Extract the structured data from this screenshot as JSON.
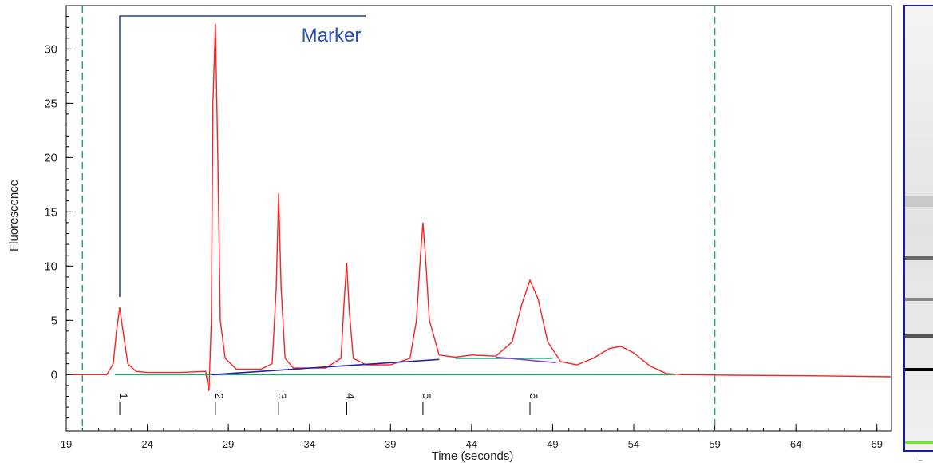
{
  "chart_data": {
    "type": "line",
    "x_label": "Time (seconds)",
    "y_label": "Fluorescence",
    "annotation": "Marker",
    "xlim": [
      19,
      69.9
    ],
    "ylim": [
      -5.2,
      34
    ],
    "xticks": [
      19,
      24,
      29,
      34,
      39,
      44,
      49,
      54,
      59,
      64,
      69
    ],
    "yticks": [
      0,
      5,
      10,
      15,
      20,
      25,
      30
    ],
    "minor_tick_step": 1,
    "window_lines": [
      20,
      59
    ],
    "window_color": "#2e9e74",
    "peaks": {
      "x": [
        22.3,
        28.2,
        32.1,
        36.3,
        41.0,
        47.6
      ],
      "labels": [
        "1",
        "2",
        "3",
        "4",
        "5",
        "6"
      ]
    },
    "series": [
      {
        "color": "#ff2020",
        "x": [
          19.4,
          21.5,
          21.9,
          22.1,
          22.3,
          22.5,
          22.8,
          23.3,
          24,
          26,
          27.6,
          27.8,
          27.95,
          28.05,
          28.2,
          28.35,
          28.5,
          28.8,
          29.5,
          31,
          31.7,
          31.95,
          32.1,
          32.25,
          32.5,
          33,
          35,
          35.95,
          36.15,
          36.3,
          36.45,
          36.7,
          37.5,
          39,
          40.2,
          40.6,
          40.85,
          41.0,
          41.15,
          41.4,
          42,
          43,
          44,
          45.5,
          46.5,
          47.1,
          47.6,
          48.1,
          48.7,
          49.5,
          50.5,
          51.5,
          52.5,
          53.2,
          54,
          55,
          56,
          57,
          60,
          65,
          69.9
        ],
        "values": [
          0,
          0,
          1,
          4,
          6.2,
          4,
          1,
          0.3,
          0.2,
          0.2,
          0.3,
          -1.5,
          5,
          25,
          32.3,
          20,
          5,
          1.5,
          0.5,
          0.5,
          1,
          8,
          16.7,
          8,
          1.5,
          0.6,
          0.6,
          1.5,
          7,
          10.3,
          6,
          1.5,
          0.9,
          0.9,
          1.5,
          5,
          11,
          14,
          11,
          5,
          1.8,
          1.6,
          1.8,
          1.7,
          3,
          6.5,
          8.7,
          7,
          3,
          1.2,
          0.9,
          1.5,
          2.4,
          2.6,
          2,
          0.8,
          0.1,
          0,
          -0.05,
          -0.1,
          -0.2
        ]
      },
      {
        "color": "#2e9e74",
        "x": [
          22,
          56.6
        ],
        "values": [
          0,
          0
        ]
      },
      {
        "color": "#2e9e74",
        "x": [
          43,
          49
        ],
        "values": [
          1.5,
          1.5
        ]
      },
      {
        "color": "#2323aa",
        "x": [
          28,
          42
        ],
        "values": [
          0,
          1.4
        ]
      },
      {
        "color": "#8844cc",
        "x": [
          45.5,
          49.2
        ],
        "values": [
          1.6,
          1.1
        ]
      }
    ]
  },
  "gel": {
    "lane_label": "L"
  }
}
